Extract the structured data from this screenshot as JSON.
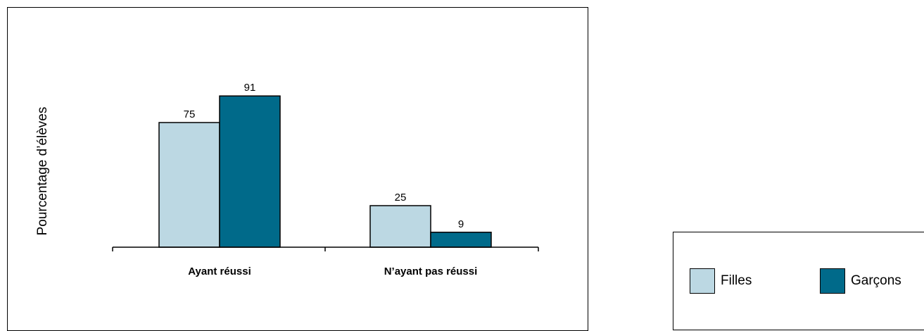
{
  "chart_data": {
    "type": "bar",
    "title": "",
    "xlabel": "",
    "ylabel": "Pourcentage d’élèves",
    "ylim": [
      0,
      100
    ],
    "grid": false,
    "legend_position": "bottom-right",
    "categories": [
      "Ayant réussi",
      "N’ayant pas réussi"
    ],
    "series": [
      {
        "name": "Filles",
        "color": "#BCD8E3",
        "values": [
          75,
          25
        ]
      },
      {
        "name": "Garçons",
        "color": "#006A8A",
        "values": [
          91,
          9
        ]
      }
    ]
  }
}
